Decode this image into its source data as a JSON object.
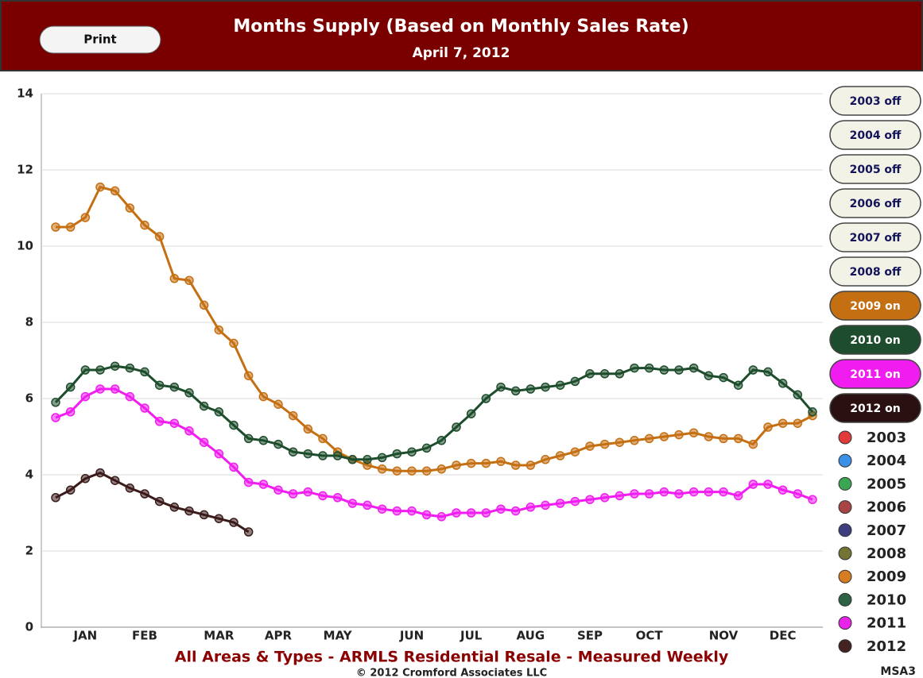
{
  "print_button": "Print",
  "chart_data": {
    "type": "line",
    "title": "Months Supply (Based on Monthly Sales Rate)",
    "subtitle": "April 7, 2012",
    "footer": "All Areas & Types - ARMLS Residential Resale - Measured Weekly",
    "copyright": "© 2012 Cromford Associates LLC",
    "code": "MSA3",
    "categories": [
      null,
      null,
      "JAN",
      null,
      null,
      null,
      "FEB",
      null,
      null,
      null,
      null,
      "MAR",
      null,
      null,
      null,
      "APR",
      null,
      null,
      null,
      "MAY",
      null,
      null,
      null,
      null,
      "JUN",
      null,
      null,
      null,
      "JUL",
      null,
      null,
      null,
      "AUG",
      null,
      null,
      null,
      "SEP",
      null,
      null,
      null,
      "OCT",
      null,
      null,
      null,
      null,
      "NOV",
      null,
      null,
      null,
      "DEC",
      null,
      null
    ],
    "ylim": [
      0,
      14
    ],
    "yticks": [
      0,
      2,
      4,
      6,
      8,
      10,
      12,
      14
    ],
    "grid": true,
    "series": [
      {
        "name": "2009",
        "color": "#c46f12",
        "values": [
          10.5,
          10.5,
          10.75,
          11.55,
          11.45,
          11.0,
          10.55,
          10.25,
          9.15,
          9.1,
          8.45,
          7.8,
          7.45,
          6.6,
          6.05,
          5.85,
          5.55,
          5.2,
          4.95,
          4.6,
          4.4,
          4.25,
          4.15,
          4.1,
          4.1,
          4.1,
          4.15,
          4.25,
          4.3,
          4.3,
          4.35,
          4.25,
          4.25,
          4.4,
          4.5,
          4.6,
          4.75,
          4.8,
          4.85,
          4.9,
          4.95,
          5.0,
          5.05,
          5.1,
          5.0,
          4.95,
          4.95,
          4.8,
          5.25,
          5.35,
          5.35,
          5.55
        ]
      },
      {
        "name": "2010",
        "color": "#1d4d2c",
        "values": [
          5.9,
          6.3,
          6.75,
          6.75,
          6.85,
          6.8,
          6.7,
          6.35,
          6.3,
          6.15,
          5.8,
          5.65,
          5.3,
          4.95,
          4.9,
          4.8,
          4.6,
          4.55,
          4.5,
          4.5,
          4.4,
          4.4,
          4.45,
          4.55,
          4.6,
          4.7,
          4.9,
          5.25,
          5.6,
          6.0,
          6.3,
          6.2,
          6.25,
          6.3,
          6.35,
          6.45,
          6.65,
          6.65,
          6.65,
          6.8,
          6.8,
          6.75,
          6.75,
          6.8,
          6.6,
          6.55,
          6.35,
          6.75,
          6.7,
          6.4,
          6.1,
          5.65
        ]
      },
      {
        "name": "2011",
        "color": "#f01cf0",
        "values": [
          5.5,
          5.65,
          6.05,
          6.25,
          6.25,
          6.05,
          5.75,
          5.4,
          5.35,
          5.15,
          4.85,
          4.55,
          4.2,
          3.8,
          3.75,
          3.6,
          3.5,
          3.55,
          3.45,
          3.4,
          3.25,
          3.2,
          3.1,
          3.05,
          3.05,
          2.95,
          2.9,
          3.0,
          3.0,
          3.0,
          3.1,
          3.05,
          3.15,
          3.2,
          3.25,
          3.3,
          3.35,
          3.4,
          3.45,
          3.5,
          3.5,
          3.55,
          3.5,
          3.55,
          3.55,
          3.55,
          3.45,
          3.75,
          3.75,
          3.6,
          3.5,
          3.35
        ]
      },
      {
        "name": "2012",
        "color": "#3b1a1a",
        "values": [
          3.4,
          3.6,
          3.9,
          4.05,
          3.85,
          3.65,
          3.5,
          3.3,
          3.15,
          3.05,
          2.95,
          2.85,
          2.75,
          2.5,
          null,
          null,
          null,
          null,
          null,
          null,
          null,
          null,
          null,
          null,
          null,
          null,
          null,
          null,
          null,
          null,
          null,
          null,
          null,
          null,
          null,
          null,
          null,
          null,
          null,
          null,
          null,
          null,
          null,
          null,
          null,
          null,
          null,
          null,
          null,
          null,
          null,
          null
        ]
      }
    ],
    "legend": [
      {
        "name": "2003",
        "color": "#e03a3a"
      },
      {
        "name": "2004",
        "color": "#3a8fe6"
      },
      {
        "name": "2005",
        "color": "#3aa552"
      },
      {
        "name": "2006",
        "color": "#a84444"
      },
      {
        "name": "2007",
        "color": "#3d3d80"
      },
      {
        "name": "2008",
        "color": "#747434"
      },
      {
        "name": "2009",
        "color": "#d67c22"
      },
      {
        "name": "2010",
        "color": "#2e6244"
      },
      {
        "name": "2011",
        "color": "#e824e8"
      },
      {
        "name": "2012",
        "color": "#442222"
      }
    ],
    "toggles": [
      {
        "label": "2003 off",
        "color": "#f2f2e6"
      },
      {
        "label": "2004 off",
        "color": "#f2f2e6"
      },
      {
        "label": "2005 off",
        "color": "#f2f2e6"
      },
      {
        "label": "2006 off",
        "color": "#f2f2e6"
      },
      {
        "label": "2007 off",
        "color": "#f2f2e6"
      },
      {
        "label": "2008 off",
        "color": "#f2f2e6"
      },
      {
        "label": "2009 on",
        "color": "#c46f12"
      },
      {
        "label": "2010 on",
        "color": "#1d4d2c"
      },
      {
        "label": "2011 on",
        "color": "#f01cf0"
      },
      {
        "label": "2012 on",
        "color": "#2a1010"
      }
    ]
  }
}
